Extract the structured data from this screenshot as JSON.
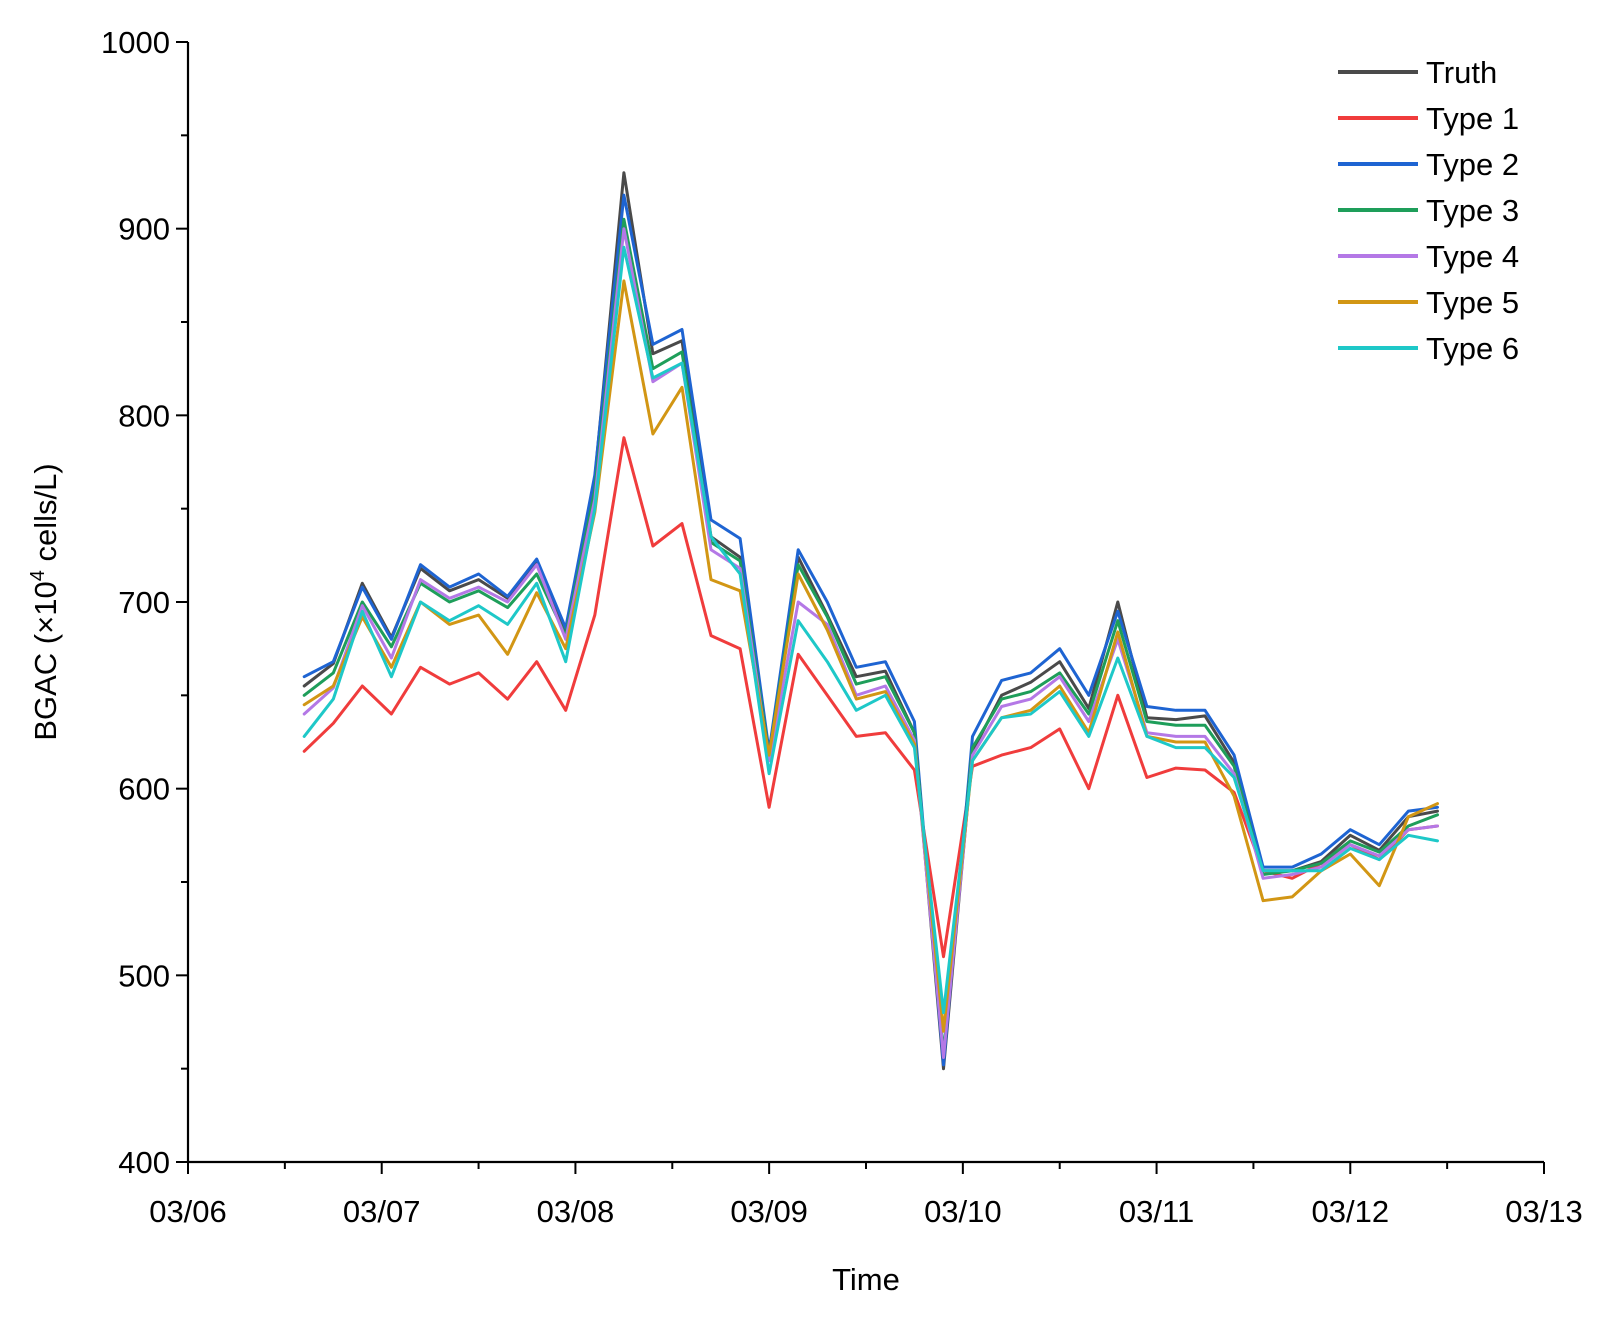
{
  "chart_data": {
    "type": "line",
    "title": "",
    "xlabel": "Time",
    "ylabel_main": "BGAC (×10",
    "ylabel_sup": "4",
    "ylabel_tail": " cells/L)",
    "x_ticks": [
      "03/06",
      "03/07",
      "03/08",
      "03/09",
      "03/10",
      "03/11",
      "03/12",
      "03/13"
    ],
    "xlim": [
      "03/06 00:00",
      "03/13 00:00"
    ],
    "y_ticks": [
      400,
      500,
      600,
      700,
      800,
      900,
      1000
    ],
    "ylim": [
      400,
      1000
    ],
    "legend_position": "top-right",
    "grid": false,
    "x": [
      "03/06 14:24",
      "03/06 18:00",
      "03/06 21:36",
      "03/07 01:12",
      "03/07 04:48",
      "03/07 08:24",
      "03/07 12:00",
      "03/07 15:36",
      "03/07 19:12",
      "03/07 22:48",
      "03/08 02:24",
      "03/08 06:00",
      "03/08 09:36",
      "03/08 13:12",
      "03/08 16:48",
      "03/08 20:24",
      "03/09 00:00",
      "03/09 03:36",
      "03/09 07:12",
      "03/09 10:48",
      "03/09 14:24",
      "03/09 18:00",
      "03/09 21:36",
      "03/10 01:12",
      "03/10 04:48",
      "03/10 08:24",
      "03/10 12:00",
      "03/10 15:36",
      "03/10 19:12",
      "03/10 22:48",
      "03/11 02:24",
      "03/11 06:00",
      "03/11 09:36",
      "03/11 13:12",
      "03/11 16:48",
      "03/11 20:24",
      "03/12 00:00",
      "03/12 03:36",
      "03/12 07:12",
      "03/12 10:48"
    ],
    "series": [
      {
        "name": "Truth",
        "color": "#4a4a4a",
        "values": [
          655,
          667,
          710,
          681,
          718,
          706,
          712,
          702,
          722,
          684,
          766,
          930,
          833,
          840,
          735,
          724,
          615,
          724,
          693,
          660,
          663,
          630,
          450,
          620,
          650,
          657,
          668,
          643,
          700,
          638,
          637,
          639,
          614,
          556,
          556,
          561,
          575,
          567,
          585,
          588
        ]
      },
      {
        "name": "Type 1",
        "color": "#f03c3c",
        "values": [
          620,
          635,
          655,
          640,
          665,
          656,
          662,
          648,
          668,
          642,
          693,
          788,
          730,
          742,
          682,
          675,
          590,
          672,
          650,
          628,
          630,
          610,
          510,
          612,
          618,
          622,
          632,
          600,
          650,
          606,
          611,
          610,
          598,
          556,
          552,
          560,
          570,
          562,
          578,
          580
        ]
      },
      {
        "name": "Type 2",
        "color": "#1e64d2",
        "values": [
          660,
          668,
          708,
          680,
          720,
          708,
          715,
          703,
          723,
          686,
          768,
          918,
          838,
          846,
          744,
          734,
          620,
          728,
          700,
          665,
          668,
          636,
          452,
          628,
          658,
          662,
          675,
          650,
          695,
          644,
          642,
          642,
          618,
          558,
          558,
          565,
          578,
          570,
          588,
          590
        ]
      },
      {
        "name": "Type 3",
        "color": "#1e9e5a",
        "values": [
          650,
          662,
          700,
          676,
          710,
          700,
          706,
          697,
          715,
          682,
          760,
          905,
          825,
          834,
          732,
          722,
          618,
          720,
          692,
          656,
          660,
          630,
          458,
          622,
          648,
          652,
          662,
          640,
          690,
          636,
          634,
          634,
          612,
          554,
          556,
          560,
          572,
          566,
          580,
          586
        ]
      },
      {
        "name": "Type 4",
        "color": "#b478e6",
        "values": [
          640,
          654,
          698,
          670,
          712,
          702,
          708,
          700,
          720,
          680,
          755,
          900,
          818,
          828,
          728,
          718,
          615,
          700,
          688,
          650,
          655,
          626,
          456,
          618,
          644,
          648,
          660,
          636,
          680,
          630,
          628,
          628,
          608,
          552,
          554,
          558,
          570,
          564,
          578,
          580
        ]
      },
      {
        "name": "Type 5",
        "color": "#d29614",
        "values": [
          645,
          655,
          692,
          665,
          700,
          688,
          693,
          672,
          705,
          675,
          748,
          872,
          790,
          815,
          712,
          706,
          618,
          715,
          685,
          648,
          652,
          624,
          470,
          615,
          638,
          642,
          655,
          630,
          684,
          628,
          625,
          625,
          596,
          540,
          542,
          556,
          565,
          548,
          585,
          592
        ]
      },
      {
        "name": "Type 6",
        "color": "#1ec8c8",
        "values": [
          628,
          648,
          695,
          660,
          700,
          690,
          698,
          688,
          710,
          668,
          750,
          890,
          820,
          828,
          735,
          715,
          608,
          690,
          668,
          642,
          650,
          622,
          480,
          615,
          638,
          640,
          652,
          628,
          670,
          628,
          622,
          622,
          606,
          556,
          556,
          556,
          568,
          562,
          575,
          572
        ]
      }
    ]
  }
}
